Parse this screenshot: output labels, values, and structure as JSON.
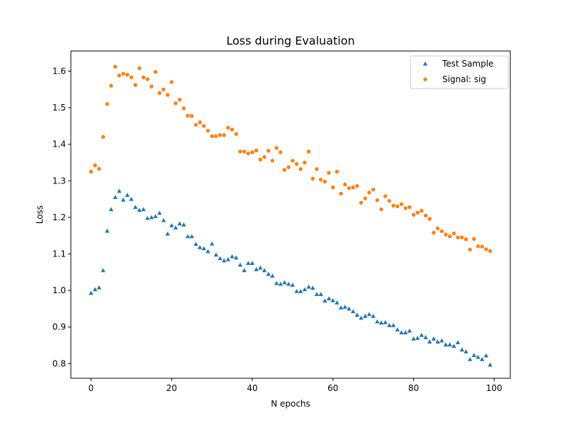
{
  "chart_data": {
    "type": "scatter",
    "title": "Loss during Evaluation",
    "xlabel": "N epochs",
    "ylabel": "Loss",
    "xlim": [
      -5,
      104
    ],
    "ylim": [
      0.76,
      1.655
    ],
    "grid": false,
    "legend_position": "top-right",
    "x_ticks": [
      0,
      20,
      40,
      60,
      80,
      100
    ],
    "x_tick_labels": [
      "0",
      "20",
      "40",
      "60",
      "80",
      "100"
    ],
    "y_ticks": [
      0.8,
      0.9,
      1.0,
      1.1,
      1.2,
      1.3,
      1.4,
      1.5,
      1.6
    ],
    "y_tick_labels": [
      "0.8",
      "0.9",
      "1.0",
      "1.1",
      "1.2",
      "1.3",
      "1.4",
      "1.5",
      "1.6"
    ],
    "x": [
      0,
      1,
      2,
      3,
      4,
      5,
      6,
      7,
      8,
      9,
      10,
      11,
      12,
      13,
      14,
      15,
      16,
      17,
      18,
      19,
      20,
      21,
      22,
      23,
      24,
      25,
      26,
      27,
      28,
      29,
      30,
      31,
      32,
      33,
      34,
      35,
      36,
      37,
      38,
      39,
      40,
      41,
      42,
      43,
      44,
      45,
      46,
      47,
      48,
      49,
      50,
      51,
      52,
      53,
      54,
      55,
      56,
      57,
      58,
      59,
      60,
      61,
      62,
      63,
      64,
      65,
      66,
      67,
      68,
      69,
      70,
      71,
      72,
      73,
      74,
      75,
      76,
      77,
      78,
      79,
      80,
      81,
      82,
      83,
      84,
      85,
      86,
      87,
      88,
      89,
      90,
      91,
      92,
      93,
      94,
      95,
      96,
      97,
      98,
      99
    ],
    "series": [
      {
        "name": "Test Sample",
        "marker": "triangle",
        "color": "#1f77b4",
        "values": [
          0.993,
          1.003,
          1.008,
          1.055,
          1.163,
          1.222,
          1.255,
          1.272,
          1.248,
          1.261,
          1.25,
          1.228,
          1.22,
          1.222,
          1.198,
          1.2,
          1.203,
          1.212,
          1.192,
          1.155,
          1.178,
          1.172,
          1.183,
          1.18,
          1.148,
          1.148,
          1.127,
          1.118,
          1.115,
          1.107,
          1.128,
          1.098,
          1.088,
          1.082,
          1.085,
          1.093,
          1.09,
          1.07,
          1.055,
          1.075,
          1.075,
          1.058,
          1.062,
          1.055,
          1.045,
          1.04,
          1.02,
          1.018,
          1.022,
          1.018,
          1.015,
          0.998,
          0.998,
          1.003,
          1.01,
          1.007,
          0.99,
          0.99,
          0.972,
          0.978,
          0.973,
          0.967,
          0.953,
          0.955,
          0.95,
          0.943,
          0.933,
          0.925,
          0.93,
          0.935,
          0.93,
          0.915,
          0.912,
          0.913,
          0.905,
          0.905,
          0.893,
          0.885,
          0.885,
          0.89,
          0.868,
          0.87,
          0.878,
          0.872,
          0.86,
          0.868,
          0.86,
          0.863,
          0.852,
          0.852,
          0.848,
          0.858,
          0.838,
          0.833,
          0.812,
          0.823,
          0.818,
          0.812,
          0.822,
          0.797
        ]
      },
      {
        "name": "Signal: sig",
        "marker": "circle",
        "color": "#ff7f0e",
        "values": [
          1.325,
          1.342,
          1.333,
          1.42,
          1.51,
          1.56,
          1.612,
          1.588,
          1.593,
          1.59,
          1.583,
          1.562,
          1.608,
          1.583,
          1.578,
          1.558,
          1.598,
          1.54,
          1.55,
          1.535,
          1.57,
          1.512,
          1.522,
          1.498,
          1.478,
          1.477,
          1.453,
          1.46,
          1.45,
          1.437,
          1.422,
          1.422,
          1.425,
          1.425,
          1.445,
          1.44,
          1.428,
          1.38,
          1.38,
          1.375,
          1.378,
          1.383,
          1.358,
          1.365,
          1.382,
          1.355,
          1.39,
          1.378,
          1.33,
          1.337,
          1.355,
          1.346,
          1.332,
          1.35,
          1.38,
          1.306,
          1.332,
          1.303,
          1.298,
          1.322,
          1.282,
          1.325,
          1.265,
          1.29,
          1.28,
          1.282,
          1.286,
          1.24,
          1.252,
          1.268,
          1.276,
          1.247,
          1.222,
          1.258,
          1.245,
          1.232,
          1.23,
          1.236,
          1.225,
          1.228,
          1.207,
          1.213,
          1.218,
          1.205,
          1.196,
          1.158,
          1.17,
          1.162,
          1.153,
          1.148,
          1.156,
          1.145,
          1.145,
          1.14,
          1.112,
          1.141,
          1.121,
          1.12,
          1.113,
          1.108
        ]
      }
    ]
  }
}
